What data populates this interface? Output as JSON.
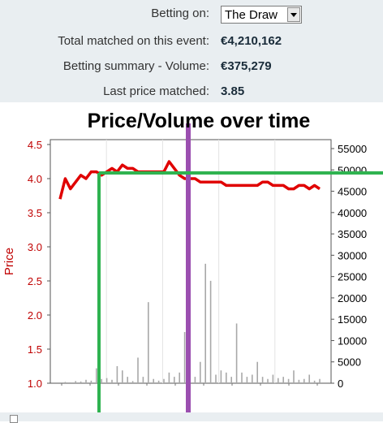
{
  "summary": {
    "betting_on_label": "Betting on:",
    "betting_on_value": "The Draw",
    "total_matched_label": "Total matched on this event:",
    "total_matched_value": "€4,210,162",
    "volume_label": "Betting summary - Volume:",
    "volume_value": "€375,279",
    "last_price_label": "Last price matched:",
    "last_price_value": "3.85"
  },
  "chart_data": {
    "type": "line",
    "title": "Price/Volume over time",
    "ylabel": "Price",
    "ylabel_right": "",
    "ylim": [
      1.0,
      4.5
    ],
    "ylim_right": [
      0,
      55000
    ],
    "yticks": [
      "1.0",
      "1.5",
      "2.0",
      "2.5",
      "3.0",
      "3.5",
      "4.0",
      "4.5"
    ],
    "yticks_right": [
      "0",
      "5000",
      "10000",
      "15000",
      "20000",
      "25000",
      "30000",
      "35000",
      "40000",
      "45000",
      "50000",
      "55000"
    ],
    "x": [
      0,
      2,
      4,
      6,
      8,
      10,
      12,
      14,
      16,
      18,
      20,
      22,
      24,
      26,
      28,
      30,
      32,
      34,
      36,
      38,
      40,
      42,
      44,
      46,
      48,
      50,
      52,
      54,
      56,
      58,
      60,
      62,
      64,
      66,
      68,
      70,
      72,
      74,
      76,
      78,
      80,
      82,
      84,
      86,
      88,
      90,
      92,
      94,
      96,
      98,
      100
    ],
    "series": [
      {
        "role": "price",
        "color": "#e00000",
        "values": [
          3.7,
          4.0,
          3.85,
          3.95,
          4.05,
          4.0,
          4.1,
          4.1,
          4.05,
          4.1,
          4.15,
          4.1,
          4.2,
          4.15,
          4.15,
          4.1,
          4.1,
          4.1,
          4.1,
          4.1,
          4.1,
          4.25,
          4.15,
          4.05,
          4.0,
          4.0,
          4.0,
          3.95,
          3.95,
          3.95,
          3.95,
          3.95,
          3.9,
          3.9,
          3.9,
          3.9,
          3.9,
          3.9,
          3.9,
          3.95,
          3.95,
          3.9,
          3.9,
          3.9,
          3.85,
          3.85,
          3.9,
          3.9,
          3.85,
          3.9,
          3.85
        ]
      },
      {
        "role": "volume",
        "color": "#a8a8a8",
        "values": [
          0,
          300,
          200,
          500,
          400,
          800,
          600,
          3500,
          1000,
          1200,
          800,
          4000,
          3000,
          1500,
          500,
          6000,
          1500,
          19000,
          1000,
          600,
          1000,
          2500,
          1500,
          2500,
          12000,
          11000,
          1500,
          5000,
          28000,
          24000,
          2000,
          3000,
          2500,
          1500,
          14000,
          2500,
          1500,
          2000,
          5000,
          1500,
          1000,
          2000,
          1200,
          1500,
          1000,
          3000,
          800,
          1000,
          2000,
          600,
          1000
        ]
      }
    ],
    "grid": "vertical",
    "legend": "none"
  },
  "overlays": {
    "purple_color": "#9b4fb0",
    "green_color": "#2fb350"
  }
}
